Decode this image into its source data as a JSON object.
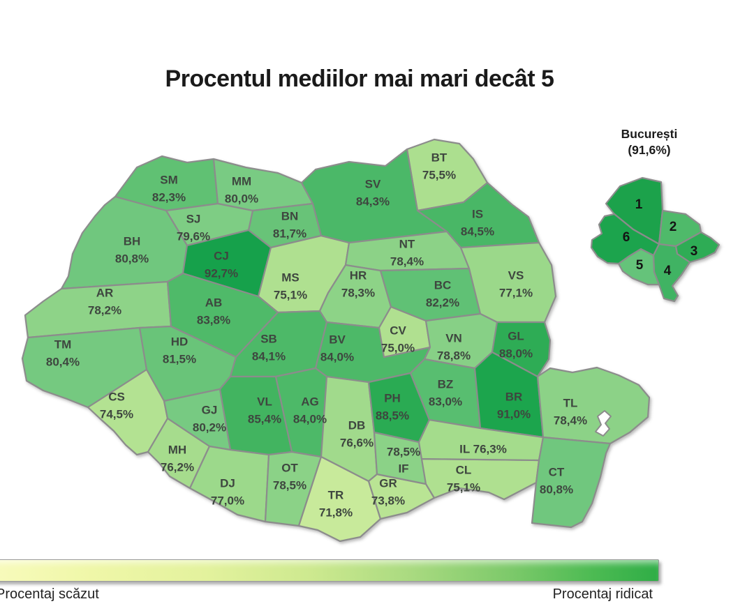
{
  "chart_data": {
    "type": "heatmap",
    "subtype": "choropleth-map-of-romania",
    "title": "Procentul mediilor mai mari decât 5",
    "unit": "%",
    "regions": [
      {
        "code": "SM",
        "value": 82.3,
        "label": "82,3%"
      },
      {
        "code": "MM",
        "value": 80.0,
        "label": "80,0%"
      },
      {
        "code": "BT",
        "value": 75.5,
        "label": "75,5%"
      },
      {
        "code": "SV",
        "value": 84.3,
        "label": "84,3%"
      },
      {
        "code": "IS",
        "value": 84.5,
        "label": "84,5%"
      },
      {
        "code": "BN",
        "value": 81.7,
        "label": "81,7%"
      },
      {
        "code": "SJ",
        "value": 79.6,
        "label": "79,6%"
      },
      {
        "code": "BH",
        "value": 80.8,
        "label": "80,8%"
      },
      {
        "code": "CJ",
        "value": 92.7,
        "label": "92,7%"
      },
      {
        "code": "MS",
        "value": 75.1,
        "label": "75,1%"
      },
      {
        "code": "NT",
        "value": 78.4,
        "label": "78,4%"
      },
      {
        "code": "HR",
        "value": 78.3,
        "label": "78,3%"
      },
      {
        "code": "BC",
        "value": 82.2,
        "label": "82,2%"
      },
      {
        "code": "VS",
        "value": 77.1,
        "label": "77,1%"
      },
      {
        "code": "AR",
        "value": 78.2,
        "label": "78,2%"
      },
      {
        "code": "AB",
        "value": 83.8,
        "label": "83,8%"
      },
      {
        "code": "TM",
        "value": 80.4,
        "label": "80,4%"
      },
      {
        "code": "HD",
        "value": 81.5,
        "label": "81,5%"
      },
      {
        "code": "SB",
        "value": 84.1,
        "label": "84,1%"
      },
      {
        "code": "BV",
        "value": 84.0,
        "label": "84,0%"
      },
      {
        "code": "CV",
        "value": 75.0,
        "label": "75,0%"
      },
      {
        "code": "VN",
        "value": 78.8,
        "label": "78,8%"
      },
      {
        "code": "GL",
        "value": 88.0,
        "label": "88,0%"
      },
      {
        "code": "CS",
        "value": 74.5,
        "label": "74,5%"
      },
      {
        "code": "GJ",
        "value": 80.2,
        "label": "80,2%"
      },
      {
        "code": "VL",
        "value": 85.4,
        "label": "85,4%"
      },
      {
        "code": "AG",
        "value": 84.0,
        "label": "84,0%"
      },
      {
        "code": "DB",
        "value": 76.6,
        "label": "76,6%"
      },
      {
        "code": "PH",
        "value": 88.5,
        "label": "88,5%"
      },
      {
        "code": "BZ",
        "value": 83.0,
        "label": "83,0%"
      },
      {
        "code": "BR",
        "value": 91.0,
        "label": "91,0%"
      },
      {
        "code": "TL",
        "value": 78.4,
        "label": "78,4%"
      },
      {
        "code": "MH",
        "value": 76.2,
        "label": "76,2%"
      },
      {
        "code": "DJ",
        "value": 77.0,
        "label": "77,0%"
      },
      {
        "code": "OT",
        "value": 78.5,
        "label": "78,5%"
      },
      {
        "code": "TR",
        "value": 71.8,
        "label": "71,8%"
      },
      {
        "code": "GR",
        "value": 73.8,
        "label": "73,8%"
      },
      {
        "code": "IF",
        "value": 78.5,
        "label": "78,5%"
      },
      {
        "code": "CL",
        "value": 75.1,
        "label": "75,1%"
      },
      {
        "code": "IL",
        "value": 76.3,
        "label": "76,3%"
      },
      {
        "code": "CT",
        "value": 80.8,
        "label": "80,8%"
      }
    ],
    "bucharest": {
      "name": "București",
      "value": 91.6,
      "value_label": "(91,6%)",
      "sectors": [
        {
          "label": "1",
          "color": "#1ba24c"
        },
        {
          "label": "2",
          "color": "#4fba6b"
        },
        {
          "label": "3",
          "color": "#2fac55"
        },
        {
          "label": "4",
          "color": "#40b363"
        },
        {
          "label": "5",
          "color": "#65c37a"
        },
        {
          "label": "6",
          "color": "#1da44d"
        }
      ]
    },
    "legend": {
      "low": "Procentaj scăzut",
      "high": "Procentaj ridicat",
      "gradient": [
        [
          "#f8fbbc",
          0
        ],
        [
          "#eff7a8",
          15
        ],
        [
          "#e3f29d",
          32
        ],
        [
          "#cde98f",
          48
        ],
        [
          "#a9da80",
          63
        ],
        [
          "#7cc96a",
          78
        ],
        [
          "#4dbb53",
          90
        ],
        [
          "#2fad46",
          100
        ]
      ]
    },
    "colors": {
      "border": "#8c8c8c",
      "label": "#3e463f"
    }
  }
}
